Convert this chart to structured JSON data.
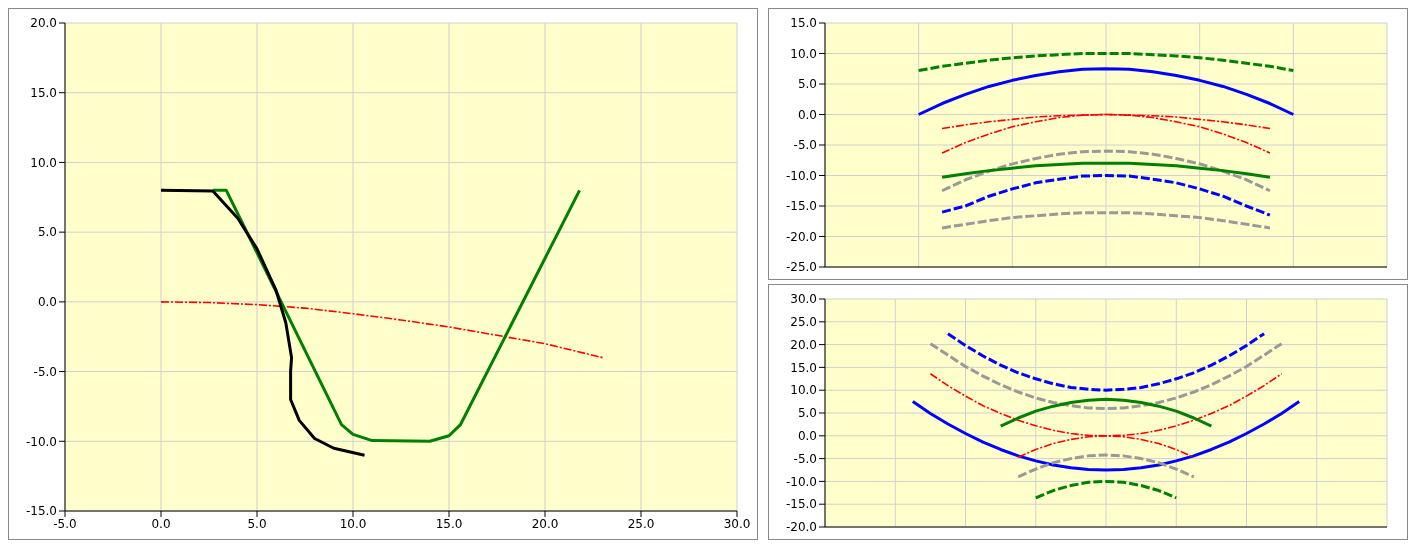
{
  "chart_data": [
    {
      "type": "line",
      "xlim": [
        -5,
        30
      ],
      "xticks": [
        {
          "value": -5,
          "label": "-5.0"
        },
        {
          "value": 0,
          "label": "0.0"
        },
        {
          "value": 5,
          "label": "5.0"
        },
        {
          "value": 10,
          "label": "10.0"
        },
        {
          "value": 15,
          "label": "15.0"
        },
        {
          "value": 20,
          "label": "20.0"
        },
        {
          "value": 25,
          "label": "25.0"
        },
        {
          "value": 30,
          "label": "30.0"
        }
      ],
      "ylim": [
        -15,
        20
      ],
      "yticks": [
        {
          "value": -15,
          "label": "-15.0"
        },
        {
          "value": -10,
          "label": "-10.0"
        },
        {
          "value": -5,
          "label": "-5.0"
        },
        {
          "value": 0,
          "label": "0.0"
        },
        {
          "value": 5,
          "label": "5.0"
        },
        {
          "value": 10,
          "label": "10.0"
        },
        {
          "value": 15,
          "label": "15.0"
        },
        {
          "value": 20,
          "label": "20.0"
        }
      ],
      "grid": true,
      "marker": "none",
      "series": [
        {
          "color": "#ff0000",
          "line_style": "dashdot",
          "x": [
            0,
            2.5,
            5,
            7.5,
            10,
            12.5,
            15,
            17.5,
            20,
            23
          ],
          "values": [
            0,
            -0.05,
            -0.2,
            -0.45,
            -0.85,
            -1.3,
            -1.8,
            -2.4,
            -3.0,
            -4.0
          ]
        },
        {
          "color": "#008000",
          "line_style": "solid",
          "x": [
            2.7,
            3.4,
            9.4,
            10,
            11,
            14,
            15,
            15.6,
            21.8
          ],
          "values": [
            8,
            8,
            -8.8,
            -9.5,
            -9.95,
            -10,
            -9.6,
            -8.8,
            8
          ]
        },
        {
          "color": "#000000",
          "line_style": "solid",
          "x": [
            0,
            2.7,
            4,
            5,
            6,
            6.5,
            6.8,
            6.75,
            6.75,
            7.2,
            8,
            9,
            10.6
          ],
          "values": [
            8,
            7.95,
            6,
            3.8,
            0.8,
            -1.5,
            -4,
            -5,
            -7,
            -8.5,
            -9.8,
            -10.5,
            -11
          ]
        }
      ]
    },
    {
      "type": "line",
      "categories": [
        null,
        null,
        null,
        null,
        null,
        null,
        null,
        null,
        null,
        null,
        null,
        null,
        null,
        null,
        null,
        null,
        null,
        null,
        null,
        null,
        null,
        null,
        null,
        null,
        null
      ],
      "ylim": [
        -25,
        15
      ],
      "yticks": [
        {
          "value": -25,
          "label": "-25.0"
        },
        {
          "value": -20,
          "label": "-20.0"
        },
        {
          "value": -15,
          "label": "-15.0"
        },
        {
          "value": -10,
          "label": "-10.0"
        },
        {
          "value": -5,
          "label": "-5.0"
        },
        {
          "value": 0,
          "label": "0.0"
        },
        {
          "value": 5,
          "label": "5.0"
        },
        {
          "value": 10,
          "label": "10.0"
        },
        {
          "value": 15,
          "label": "15.0"
        }
      ],
      "grid": true,
      "marker": "none",
      "series": [
        {
          "color": "#008000",
          "line_style": "dashed",
          "values": [
            null,
            null,
            null,
            null,
            7.2,
            7.9,
            8.4,
            8.9,
            9.3,
            9.6,
            9.8,
            10.0,
            10.0,
            10.0,
            9.8,
            9.6,
            9.3,
            8.9,
            8.4,
            7.9,
            7.2,
            null,
            null,
            null,
            null
          ]
        },
        {
          "color": "#0000ff",
          "line_style": "solid",
          "values": [
            null,
            null,
            null,
            null,
            0.0,
            1.8,
            3.3,
            4.6,
            5.6,
            6.4,
            7.0,
            7.4,
            7.5,
            7.4,
            7.0,
            6.4,
            5.6,
            4.6,
            3.3,
            1.8,
            0.0,
            null,
            null,
            null,
            null
          ]
        },
        {
          "color": "#ff0000",
          "line_style": "dashdot",
          "values": [
            null,
            null,
            null,
            null,
            null,
            -2.3,
            -1.7,
            -1.2,
            -0.8,
            -0.4,
            -0.2,
            -0.1,
            0.0,
            -0.1,
            -0.2,
            -0.4,
            -0.8,
            -1.2,
            -1.7,
            -2.3,
            null,
            null,
            null,
            null,
            null
          ]
        },
        {
          "color": "#ff0000",
          "line_style": "dashdot",
          "values": [
            null,
            null,
            null,
            null,
            null,
            -6.3,
            -4.6,
            -3.2,
            -2.0,
            -1.2,
            -0.5,
            -0.1,
            0.0,
            -0.1,
            -0.5,
            -1.2,
            -2.0,
            -3.2,
            -4.6,
            -6.3,
            null,
            null,
            null,
            null,
            null
          ]
        },
        {
          "color": "#999999",
          "line_style": "dashed",
          "values": [
            null,
            null,
            null,
            null,
            null,
            -12.5,
            -10.7,
            -9.3,
            -8.1,
            -7.2,
            -6.5,
            -6.1,
            -6.0,
            -6.1,
            -6.5,
            -7.2,
            -8.1,
            -9.3,
            -10.7,
            -12.5,
            null,
            null,
            null,
            null,
            null
          ]
        },
        {
          "color": "#008000",
          "line_style": "solid",
          "values": [
            null,
            null,
            null,
            null,
            null,
            -10.3,
            -9.7,
            -9.2,
            -8.8,
            -8.4,
            -8.2,
            -8.0,
            -8.0,
            -8.0,
            -8.2,
            -8.4,
            -8.8,
            -9.2,
            -9.7,
            -10.3,
            null,
            null,
            null,
            null,
            null
          ]
        },
        {
          "color": "#0000ff",
          "line_style": "dashed",
          "values": [
            null,
            null,
            null,
            null,
            null,
            -16.0,
            -15.0,
            -13.4,
            -12.2,
            -11.2,
            -10.6,
            -10.1,
            -10.0,
            -10.1,
            -10.6,
            -11.2,
            -12.2,
            -13.4,
            -15.0,
            -16.5,
            null,
            null,
            null,
            null,
            null
          ]
        },
        {
          "color": "#999999",
          "line_style": "dashed",
          "values": [
            null,
            null,
            null,
            null,
            null,
            -18.6,
            -18.0,
            -17.4,
            -16.9,
            -16.6,
            -16.3,
            -16.1,
            -16.1,
            -16.1,
            -16.3,
            -16.6,
            -16.9,
            -17.4,
            -18.0,
            -18.6,
            null,
            null,
            null,
            null,
            null
          ]
        }
      ]
    },
    {
      "type": "line",
      "categories": [
        null,
        null,
        null,
        null,
        null,
        null,
        null,
        null,
        null,
        null,
        null,
        null,
        null,
        null,
        null,
        null,
        null,
        null,
        null,
        null,
        null,
        null,
        null,
        null,
        null,
        null,
        null,
        null,
        null,
        null,
        null,
        null,
        null
      ],
      "ylim": [
        -20,
        30
      ],
      "yticks": [
        {
          "value": -20,
          "label": "-20.0"
        },
        {
          "value": -15,
          "label": "-15.0"
        },
        {
          "value": -10,
          "label": "-10.0"
        },
        {
          "value": -5,
          "label": "-5.0"
        },
        {
          "value": 0,
          "label": "0.0"
        },
        {
          "value": 5,
          "label": "5.0"
        },
        {
          "value": 10,
          "label": "10.0"
        },
        {
          "value": 15,
          "label": "15.0"
        },
        {
          "value": 20,
          "label": "20.0"
        },
        {
          "value": 25,
          "label": "25.0"
        },
        {
          "value": 30,
          "label": "30.0"
        }
      ],
      "grid": true,
      "marker": "none",
      "series": [
        {
          "color": "#0000ff",
          "line_style": "dashed",
          "values": [
            null,
            null,
            null,
            null,
            null,
            null,
            null,
            22.4,
            19.8,
            17.5,
            15.5,
            13.8,
            12.5,
            11.4,
            10.6,
            10.2,
            10.0,
            10.2,
            10.6,
            11.4,
            12.5,
            13.8,
            15.5,
            17.5,
            19.8,
            22.4,
            null,
            null,
            null,
            null,
            null,
            null,
            null
          ]
        },
        {
          "color": "#999999",
          "line_style": "dashed",
          "values": [
            null,
            null,
            null,
            null,
            null,
            null,
            20.2,
            17.7,
            15.2,
            13.1,
            11.2,
            9.6,
            8.3,
            7.3,
            6.6,
            6.1,
            6.0,
            6.1,
            6.6,
            7.3,
            8.3,
            9.6,
            11.2,
            13.1,
            15.2,
            17.7,
            20.2,
            null,
            null,
            null,
            null,
            null,
            null
          ]
        },
        {
          "color": "#ff0000",
          "line_style": "dashdot",
          "values": [
            null,
            null,
            null,
            null,
            null,
            null,
            13.6,
            11.0,
            8.7,
            6.6,
            4.9,
            3.4,
            2.2,
            1.2,
            0.5,
            0.1,
            0.0,
            0.1,
            0.5,
            1.2,
            2.2,
            3.4,
            4.9,
            6.6,
            8.7,
            11.0,
            13.6,
            null,
            null,
            null,
            null,
            null,
            null
          ]
        },
        {
          "color": "#0000ff",
          "line_style": "solid",
          "values": [
            null,
            null,
            null,
            null,
            null,
            7.5,
            4.9,
            2.6,
            0.5,
            -1.4,
            -3.0,
            -4.4,
            -5.5,
            -6.4,
            -7.0,
            -7.4,
            -7.5,
            -7.4,
            -7.0,
            -6.4,
            -5.5,
            -4.4,
            -3.0,
            -1.4,
            0.5,
            2.6,
            4.9,
            7.5,
            null,
            null,
            null,
            null,
            null
          ]
        },
        {
          "color": "#008000",
          "line_style": "solid",
          "values": [
            null,
            null,
            null,
            null,
            null,
            null,
            null,
            null,
            null,
            null,
            2.1,
            3.9,
            5.4,
            6.5,
            7.3,
            7.8,
            8.0,
            7.8,
            7.3,
            6.5,
            5.4,
            3.9,
            2.1,
            null,
            null,
            null,
            null,
            null,
            null,
            null,
            null,
            null,
            null
          ]
        },
        {
          "color": "#ff0000",
          "line_style": "dashdot",
          "values": [
            null,
            null,
            null,
            null,
            null,
            null,
            null,
            null,
            null,
            null,
            null,
            -4.7,
            -3.0,
            -1.7,
            -0.8,
            -0.2,
            0.0,
            -0.2,
            -0.8,
            -1.7,
            -3.0,
            -4.7,
            null,
            null,
            null,
            null,
            null,
            null,
            null,
            null,
            null,
            null,
            null
          ]
        },
        {
          "color": "#999999",
          "line_style": "dashed",
          "values": [
            null,
            null,
            null,
            null,
            null,
            null,
            null,
            null,
            null,
            null,
            null,
            -9.0,
            -7.3,
            -5.9,
            -5.0,
            -4.4,
            -4.2,
            -4.4,
            -5.0,
            -5.9,
            -7.3,
            -9.0,
            null,
            null,
            null,
            null,
            null,
            null,
            null,
            null,
            null,
            null,
            null
          ]
        },
        {
          "color": "#008000",
          "line_style": "dashed",
          "values": [
            null,
            null,
            null,
            null,
            null,
            null,
            null,
            null,
            null,
            null,
            null,
            null,
            -13.6,
            -12.0,
            -10.9,
            -10.2,
            -10.0,
            -10.2,
            -10.9,
            -12.0,
            -13.6,
            null,
            null,
            null,
            null,
            null,
            null,
            null,
            null,
            null,
            null,
            null,
            null
          ]
        }
      ]
    }
  ]
}
